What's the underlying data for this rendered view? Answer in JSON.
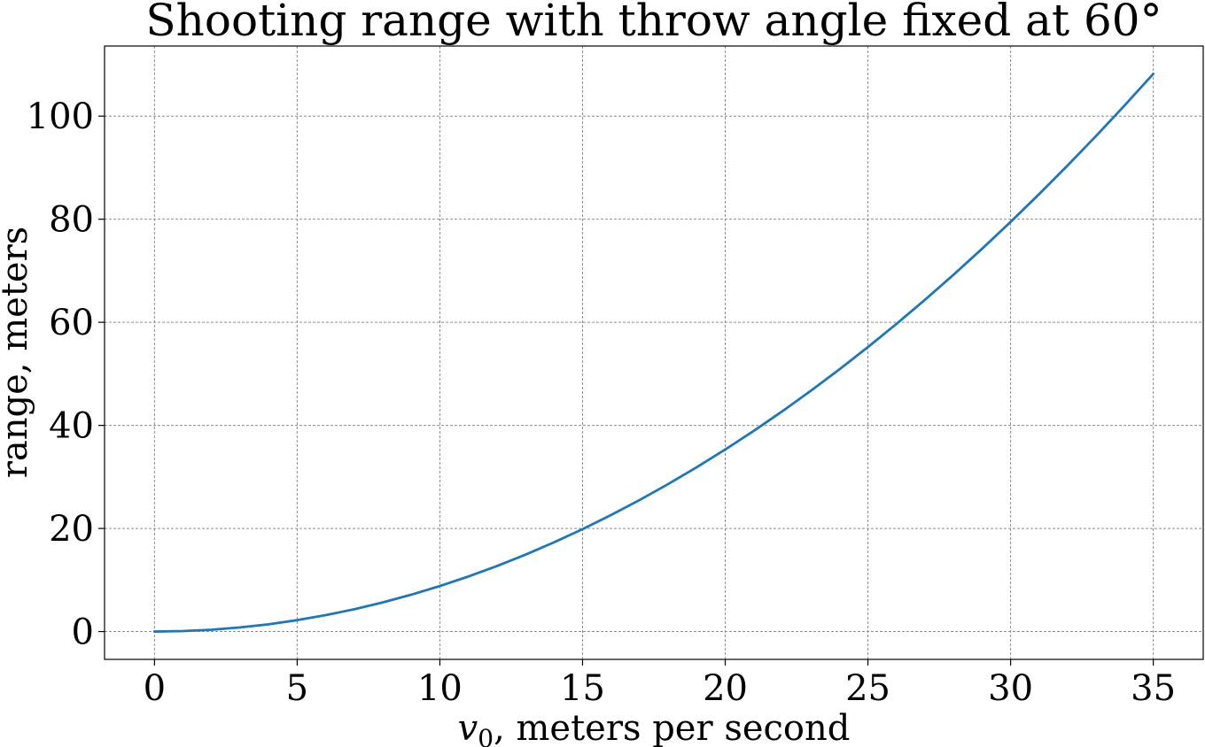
{
  "chart_data": {
    "type": "line",
    "title": "Shooting range with throw angle fixed at 60°",
    "xlabel": {
      "var": "v",
      "sub": "0",
      "rest": ", meters per second"
    },
    "ylabel": "range, meters",
    "xlim": [
      -1.75,
      36.75
    ],
    "ylim": [
      -5.4,
      113.6
    ],
    "xticks": [
      0,
      5,
      10,
      15,
      20,
      25,
      30,
      35
    ],
    "yticks": [
      0,
      20,
      40,
      60,
      80,
      100
    ],
    "grid": true,
    "line_color": "#1f77b4",
    "series": [
      {
        "x": [
          0,
          1,
          2,
          3,
          4,
          5,
          6,
          7,
          8,
          9,
          10,
          11,
          12,
          13,
          14,
          15,
          16,
          17,
          18,
          19,
          20,
          21,
          22,
          23,
          24,
          25,
          26,
          27,
          28,
          29,
          30,
          31,
          32,
          33,
          34,
          35
        ],
        "y": [
          0,
          0.09,
          0.35,
          0.8,
          1.41,
          2.21,
          3.18,
          4.33,
          5.65,
          7.15,
          8.83,
          10.68,
          12.71,
          14.92,
          17.31,
          19.87,
          22.61,
          25.52,
          28.61,
          31.88,
          35.32,
          38.94,
          42.74,
          46.71,
          50.86,
          55.19,
          59.69,
          64.37,
          69.23,
          74.27,
          79.48,
          84.87,
          90.44,
          96.18,
          102.1,
          108.2
        ]
      }
    ]
  }
}
